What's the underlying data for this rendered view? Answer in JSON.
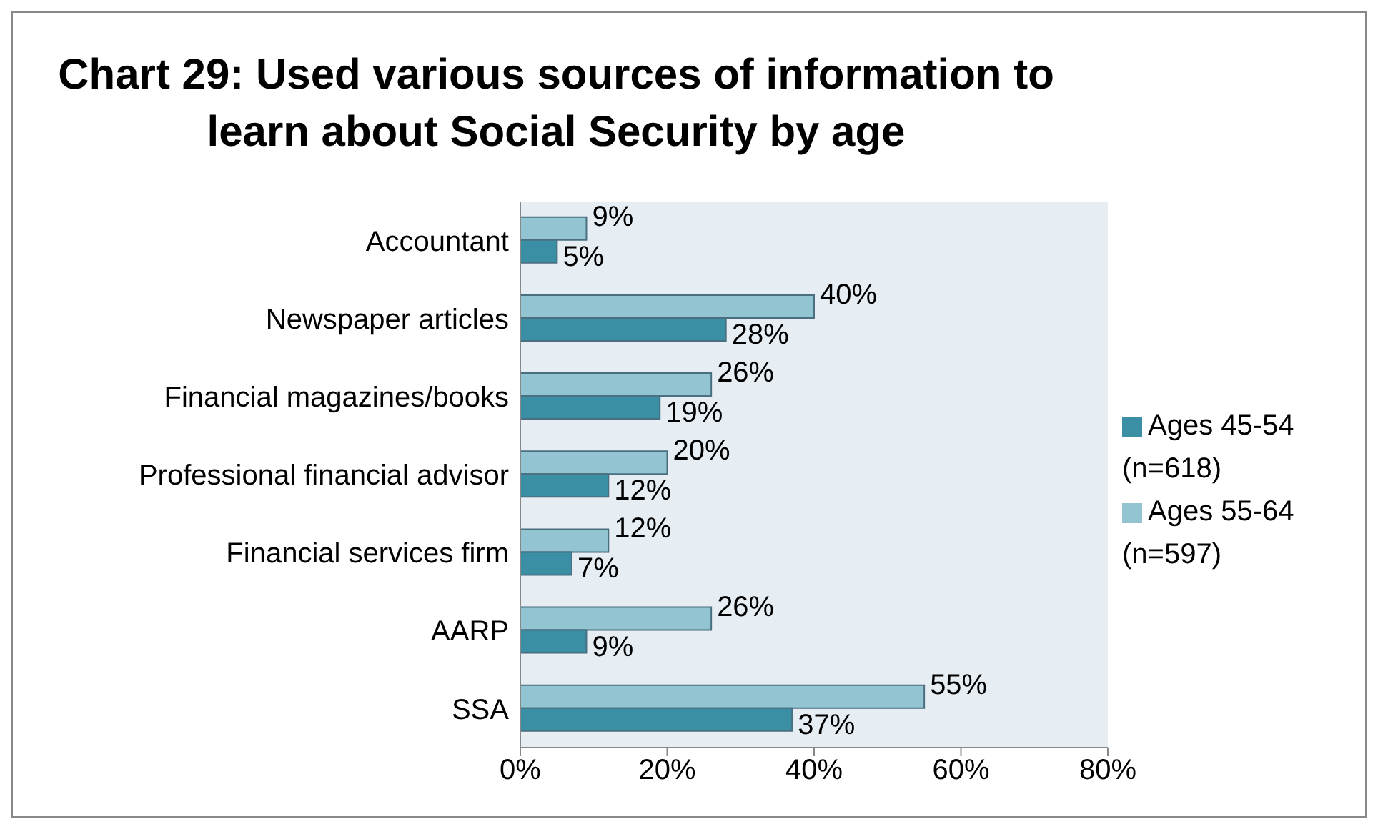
{
  "chart_data": {
    "type": "bar",
    "orientation": "horizontal",
    "title": "Chart 29:  Used various sources of information to learn about Social Security by age",
    "categories": [
      "Accountant",
      "Newspaper articles",
      "Financial magazines/books",
      "Professional financial advisor",
      "Financial services firm",
      "AARP",
      "SSA"
    ],
    "series": [
      {
        "name": "Ages 55-64 (n=597)",
        "color": "#93c4d2",
        "values": [
          9,
          40,
          26,
          20,
          12,
          26,
          55
        ],
        "value_labels": [
          "9%",
          "40%",
          "26%",
          "20%",
          "12%",
          "26%",
          "55%"
        ]
      },
      {
        "name": "Ages 45-54 (n=618)",
        "color": "#3b8fa5",
        "values": [
          5,
          28,
          19,
          12,
          7,
          9,
          37
        ],
        "value_labels": [
          "5%",
          "28%",
          "19%",
          "12%",
          "7%",
          "9%",
          "37%"
        ]
      }
    ],
    "xlim": [
      0,
      80
    ],
    "xticks": [
      {
        "value": 0,
        "label": "0%"
      },
      {
        "value": 20,
        "label": "20%"
      },
      {
        "value": 40,
        "label": "40%"
      },
      {
        "value": 60,
        "label": "60%"
      },
      {
        "value": 80,
        "label": "80%"
      }
    ],
    "grid": false,
    "legend": "right"
  }
}
